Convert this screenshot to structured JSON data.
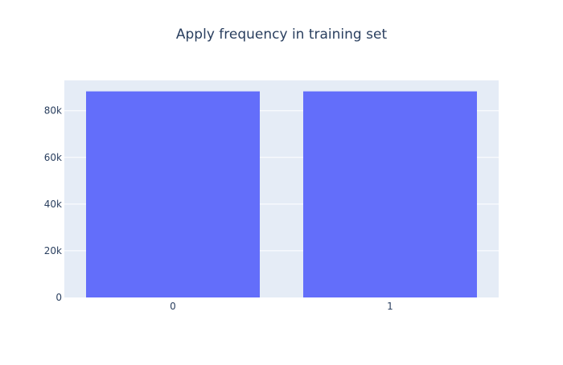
{
  "chart_data": {
    "type": "bar",
    "title": "Apply frequency in training set",
    "categories": [
      "0",
      "1"
    ],
    "values": [
      88300,
      88300
    ],
    "xlabel": "",
    "ylabel": "",
    "ylim": [
      0,
      93000
    ],
    "yticks": [
      0,
      20000,
      40000,
      60000,
      80000
    ],
    "ytick_labels": [
      "0",
      "20k",
      "40k",
      "60k",
      "80k"
    ],
    "grid": true,
    "legend": "none",
    "colors": {
      "bar": "#636efa",
      "plot_background": "#e5ecf6",
      "gridline": "#ffffff",
      "text": "#2a3f5f"
    }
  }
}
